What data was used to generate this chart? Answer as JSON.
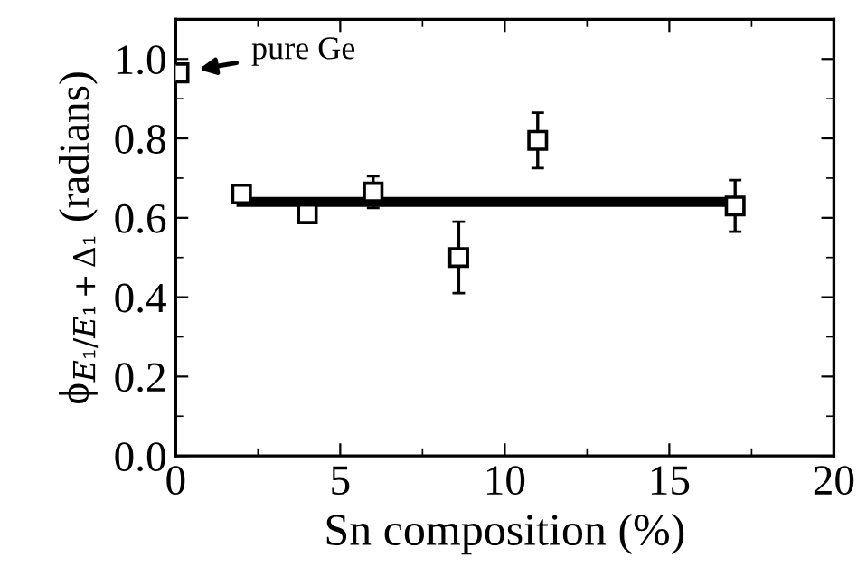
{
  "chart_data": {
    "type": "scatter",
    "xlabel": "Sn composition (%)",
    "ylabel": "ϕ$_{E₁/E₁+Δ₁}$ (radians)",
    "xlim": [
      0,
      20
    ],
    "xticks": [
      0,
      5,
      10,
      15,
      20
    ],
    "ylim": [
      0,
      1.1
    ],
    "yticks": [
      {
        "value": 0,
        "label": "0.0"
      },
      {
        "value": 0.2,
        "label": "0.2"
      },
      {
        "value": 0.4,
        "label": "0.4"
      },
      {
        "value": 0.6,
        "label": "0.6"
      },
      {
        "value": 0.8,
        "label": "0.8"
      },
      {
        "value": 1.0,
        "label": "1.0"
      }
    ],
    "marker": "square",
    "grid": false,
    "legend": false,
    "series": [
      {
        "color": "#000000",
        "x": [
          0.1,
          2,
          4,
          6,
          8.6,
          11,
          17
        ],
        "values": [
          0.965,
          0.66,
          0.61,
          0.665,
          0.5,
          0.795,
          0.63
        ],
        "errors": [
          null,
          null,
          null,
          0.04,
          0.09,
          0.07,
          0.065
        ]
      },
      {
        "type": "line",
        "color": "#000000",
        "x": [
          2,
          17
        ],
        "values": [
          0.64,
          0.64
        ],
        "marker": "none",
        "line_style": "solid"
      }
    ],
    "annotations": [
      {
        "text": "pure Ge",
        "x": 0.1,
        "y": 0.965
      }
    ]
  }
}
